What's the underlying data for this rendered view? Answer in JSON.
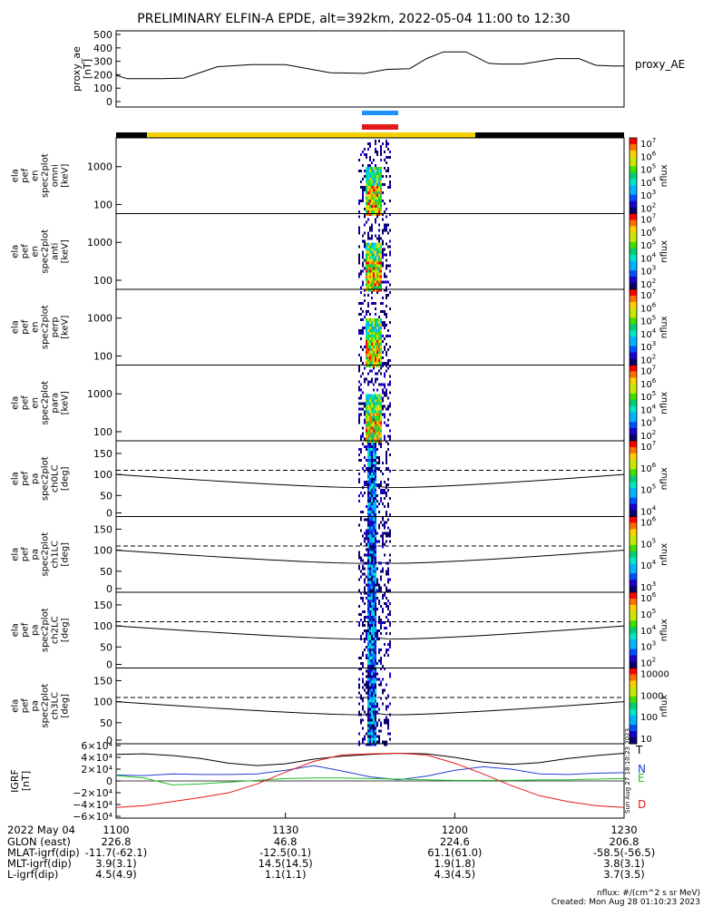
{
  "title": "PRELIMINARY ELFIN-A EPDE, alt=392km, 2022-05-04 11:00 to 12:30",
  "colors": {
    "spin_bar_blue": "#1e90ff",
    "spin_bar_red": "#e41a1c",
    "orbit_bar_yellow": "#f5d000",
    "orbit_bar_black": "#000000",
    "igrf_N": "#1f3fd0",
    "igrf_E": "#22c022",
    "igrf_D": "#e41a1c",
    "igrf_T": "#000000"
  },
  "chart_data": [
    {
      "type": "line",
      "id": "proxy_ae",
      "ylabel": "proxy_ae [nT]",
      "legend": "proxy_AE",
      "ylim": [
        0,
        500
      ],
      "yticks": [
        "500",
        "400",
        "300",
        "200",
        "100",
        "0"
      ],
      "x": [
        0,
        2,
        5,
        8,
        12,
        18,
        24,
        30,
        38,
        44,
        48,
        52,
        55,
        58,
        62,
        66,
        68,
        72,
        78,
        82,
        85,
        88,
        90
      ],
      "values": [
        195,
        170,
        170,
        170,
        175,
        260,
        275,
        275,
        215,
        210,
        240,
        245,
        320,
        370,
        370,
        285,
        280,
        280,
        320,
        320,
        270,
        265,
        265
      ]
    },
    {
      "type": "heatmap",
      "id": "omni",
      "ylabel": "ela pef en spec2plot omni [keV]",
      "yticks": [
        "1000",
        "100"
      ],
      "colorbar_label": "nflux",
      "colorbar_ticks": [
        "10^7",
        "10^6",
        "10^5",
        "10^4",
        "10^3",
        "10^2"
      ]
    },
    {
      "type": "heatmap",
      "id": "anti",
      "ylabel": "ela pef en spec2plot anti [keV]",
      "yticks": [
        "1000",
        "100"
      ],
      "colorbar_label": "nflux",
      "colorbar_ticks": [
        "10^7",
        "10^6",
        "10^5",
        "10^4",
        "10^3",
        "10^2"
      ]
    },
    {
      "type": "heatmap",
      "id": "perp",
      "ylabel": "ela pef en spec2plot perp [keV]",
      "yticks": [
        "1000",
        "100"
      ],
      "colorbar_label": "nflux",
      "colorbar_ticks": [
        "10^7",
        "10^6",
        "10^5",
        "10^4",
        "10^3",
        "10^2"
      ]
    },
    {
      "type": "heatmap",
      "id": "para",
      "ylabel": "ela pef en spec2plot para [keV]",
      "yticks": [
        "1000",
        "100"
      ],
      "colorbar_label": "nflux",
      "colorbar_ticks": [
        "10^7",
        "10^6",
        "10^5",
        "10^4",
        "10^3",
        "10^2"
      ]
    },
    {
      "type": "heatmap",
      "id": "ch0LC",
      "ylabel": "ela pef pa spec2plot ch0LC [deg]",
      "yticks": [
        "150",
        "100",
        "50",
        "0"
      ],
      "ylim": [
        0,
        180
      ],
      "colorbar_label": "nflux",
      "colorbar_ticks": [
        "10^7",
        "10^6",
        "10^5",
        "10^4"
      ]
    },
    {
      "type": "heatmap",
      "id": "ch1LC",
      "ylabel": "ela pef pa spec2plot ch1LC [deg]",
      "yticks": [
        "150",
        "100",
        "50",
        "0"
      ],
      "ylim": [
        0,
        180
      ],
      "colorbar_label": "nflux",
      "colorbar_ticks": [
        "10^6",
        "10^5",
        "10^4",
        "10^3"
      ]
    },
    {
      "type": "heatmap",
      "id": "ch2LC",
      "ylabel": "ela pef pa spec2plot ch2LC [deg]",
      "yticks": [
        "150",
        "100",
        "50",
        "0"
      ],
      "ylim": [
        0,
        180
      ],
      "colorbar_label": "nflux",
      "colorbar_ticks": [
        "10^6",
        "10^5",
        "10^4",
        "10^3",
        "10^2"
      ]
    },
    {
      "type": "heatmap",
      "id": "ch3LC",
      "ylabel": "ela pef pa spec2plot ch3LC [deg]",
      "yticks": [
        "150",
        "100",
        "50",
        "0"
      ],
      "ylim": [
        0,
        180
      ],
      "colorbar_label": "nflux",
      "colorbar_ticks": [
        "10000",
        "1000",
        "100",
        "10"
      ]
    },
    {
      "type": "line",
      "id": "igrf",
      "ylabel": "IGRF [nT]",
      "ylim": [
        -60000,
        60000
      ],
      "yticks": [
        "6×10⁴",
        "4×10⁴",
        "2×10⁴",
        "0",
        "−2×10⁴",
        "−4×10⁴",
        "−6×10⁴"
      ],
      "x": [
        0,
        5,
        10,
        15,
        20,
        25,
        30,
        35,
        40,
        45,
        50,
        55,
        60,
        65,
        70,
        75,
        80,
        85,
        90
      ],
      "series": [
        {
          "name": "T",
          "values": [
            45000,
            46000,
            43000,
            38000,
            30000,
            26000,
            29000,
            37000,
            42000,
            45000,
            47000,
            46000,
            40000,
            32000,
            28000,
            31000,
            38000,
            43000,
            47000
          ]
        },
        {
          "name": "N",
          "values": [
            10000,
            9000,
            12000,
            11000,
            11000,
            12000,
            18000,
            26000,
            17000,
            7000,
            2000,
            8000,
            18000,
            24000,
            20000,
            12000,
            11000,
            13000,
            14000
          ]
        },
        {
          "name": "E",
          "values": [
            9000,
            5000,
            -7000,
            -5000,
            -2000,
            1000,
            4000,
            5000,
            5000,
            4000,
            3000,
            2000,
            1000,
            1000,
            1000,
            2000,
            2000,
            3000,
            4000
          ]
        },
        {
          "name": "D",
          "values": [
            -45000,
            -42000,
            -35000,
            -28000,
            -20000,
            -5000,
            15000,
            33000,
            44000,
            46000,
            47000,
            44000,
            30000,
            12000,
            -8000,
            -25000,
            -35000,
            -42000,
            -45000
          ]
        }
      ]
    }
  ],
  "time_axis": {
    "labels": [
      "2022 May 04",
      "GLON (east)",
      "MLAT-igrf(dip)",
      "MLT-igrf(dip)",
      "L-igrf(dip)"
    ],
    "ticks": [
      {
        "t": "1100",
        "glon": "226.8",
        "mlat": "-11.7(-62.1)",
        "mlt": "3.9(3.1)",
        "l": "4.5(4.9)"
      },
      {
        "t": "1130",
        "glon": "46.8",
        "mlat": "-12.5(0.1)",
        "mlt": "14.5(14.5)",
        "l": "1.1(1.1)"
      },
      {
        "t": "1200",
        "glon": "224.6",
        "mlat": "61.1(61.0)",
        "mlt": "1.9(1.8)",
        "l": "4.3(4.5)"
      },
      {
        "t": "1230",
        "glon": "206.8",
        "mlat": "-58.5(-56.5)",
        "mlt": "3.8(3.1)",
        "l": "3.7(3.5)"
      }
    ]
  },
  "footer": {
    "units": "nflux: #/(cm^2 s sr MeV)",
    "created": "Created: Mon Aug 28 01:10:23 2023",
    "side_stamp": "Sun Aug 27 18:10:23 2023"
  }
}
